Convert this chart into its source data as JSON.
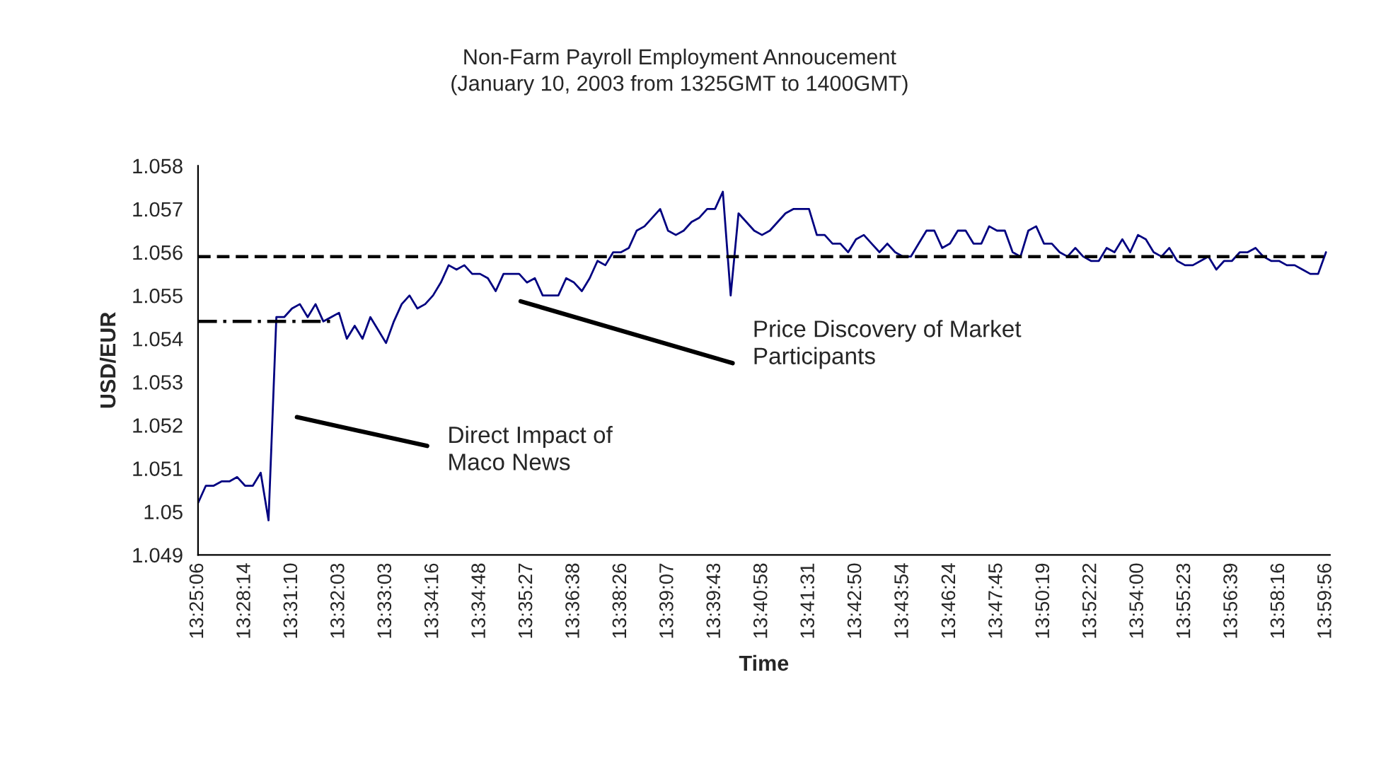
{
  "chart_data": {
    "type": "line",
    "title": "Non-Farm Payroll Employment Annoucement\n(January 10, 2003 from 1325GMT to 1400GMT)",
    "xlabel": "Time",
    "ylabel": "USD/EUR",
    "categories": [
      "13:25:06",
      null,
      null,
      null,
      null,
      null,
      "13:28:14",
      null,
      null,
      null,
      null,
      null,
      "13:31:10",
      null,
      null,
      null,
      null,
      null,
      "13:32:03",
      null,
      null,
      null,
      null,
      null,
      "13:33:03",
      null,
      null,
      null,
      null,
      null,
      "13:34:16",
      null,
      null,
      null,
      null,
      null,
      "13:34:48",
      null,
      null,
      null,
      null,
      null,
      "13:35:27",
      null,
      null,
      null,
      null,
      null,
      "13:36:38",
      null,
      null,
      null,
      null,
      null,
      "13:38:26",
      null,
      null,
      null,
      null,
      null,
      "13:39:07",
      null,
      null,
      null,
      null,
      null,
      "13:39:43",
      null,
      null,
      null,
      null,
      null,
      "13:40:58",
      null,
      null,
      null,
      null,
      null,
      "13:41:31",
      null,
      null,
      null,
      null,
      null,
      "13:42:50",
      null,
      null,
      null,
      null,
      null,
      "13:43:54",
      null,
      null,
      null,
      null,
      null,
      "13:46:24",
      null,
      null,
      null,
      null,
      null,
      "13:47:45",
      null,
      null,
      null,
      null,
      null,
      "13:50:19",
      null,
      null,
      null,
      null,
      null,
      "13:52:22",
      null,
      null,
      null,
      null,
      null,
      "13:54:00",
      null,
      null,
      null,
      null,
      null,
      "13:55:23",
      null,
      null,
      null,
      null,
      null,
      "13:56:39",
      null,
      null,
      null,
      null,
      null,
      "13:58:16",
      null,
      null,
      null,
      null,
      null,
      "13:59:56"
    ],
    "series": [
      {
        "color": "#000080",
        "line_style": "solid",
        "values": [
          1.0502,
          1.0506,
          1.0506,
          1.0507,
          1.0507,
          1.0508,
          1.0506,
          1.0506,
          1.0509,
          1.0498,
          1.0545,
          1.0545,
          1.0547,
          1.0548,
          1.0545,
          1.0548,
          1.0544,
          1.0545,
          1.0546,
          1.054,
          1.0543,
          1.054,
          1.0545,
          1.0542,
          1.0539,
          1.0544,
          1.0548,
          1.055,
          1.0547,
          1.0548,
          1.055,
          1.0553,
          1.0557,
          1.0556,
          1.0557,
          1.0555,
          1.0555,
          1.0554,
          1.0551,
          1.0555,
          1.0555,
          1.0555,
          1.0553,
          1.0554,
          1.055,
          1.055,
          1.055,
          1.0554,
          1.0553,
          1.0551,
          1.0554,
          1.0558,
          1.0557,
          1.056,
          1.056,
          1.0561,
          1.0565,
          1.0566,
          1.0568,
          1.057,
          1.0565,
          1.0564,
          1.0565,
          1.0567,
          1.0568,
          1.057,
          1.057,
          1.0574,
          1.055,
          1.0569,
          1.0567,
          1.0565,
          1.0564,
          1.0565,
          1.0567,
          1.0569,
          1.057,
          1.057,
          1.057,
          1.0564,
          1.0564,
          1.0562,
          1.0562,
          1.056,
          1.0563,
          1.0564,
          1.0562,
          1.056,
          1.0562,
          1.056,
          1.0559,
          1.0559,
          1.0562,
          1.0565,
          1.0565,
          1.0561,
          1.0562,
          1.0565,
          1.0565,
          1.0562,
          1.0562,
          1.0566,
          1.0565,
          1.0565,
          1.056,
          1.0559,
          1.0565,
          1.0566,
          1.0562,
          1.0562,
          1.056,
          1.0559,
          1.0561,
          1.0559,
          1.0558,
          1.0558,
          1.0561,
          1.056,
          1.0563,
          1.056,
          1.0564,
          1.0563,
          1.056,
          1.0559,
          1.0561,
          1.0558,
          1.0557,
          1.0557,
          1.0558,
          1.0559,
          1.0556,
          1.0558,
          1.0558,
          1.056,
          1.056,
          1.0561,
          1.0559,
          1.0558,
          1.0558,
          1.0557,
          1.0557,
          1.0556,
          1.0555,
          1.0555,
          1.056
        ]
      },
      {
        "color": "#000000",
        "line_style": "dashdot",
        "values": [
          1.0544,
          1.0544,
          1.0544,
          1.0544,
          1.0544,
          1.0544,
          1.0544,
          1.0544,
          1.0544,
          1.0544,
          1.0544,
          1.0544,
          1.0544,
          1.0544,
          1.0544,
          1.0544,
          1.0544,
          1.0544,
          null,
          null,
          null,
          null,
          null,
          null,
          null,
          null,
          null,
          null,
          null,
          null,
          null,
          null,
          null,
          null,
          null,
          null,
          null,
          null,
          null,
          null,
          null,
          null,
          null,
          null,
          null,
          null,
          null,
          null,
          null,
          null,
          null,
          null,
          null,
          null,
          null,
          null,
          null,
          null,
          null,
          null,
          null,
          null,
          null,
          null,
          null,
          null,
          null,
          null,
          null,
          null,
          null,
          null,
          null,
          null,
          null,
          null,
          null,
          null,
          null,
          null,
          null,
          null,
          null,
          null,
          null,
          null,
          null,
          null,
          null,
          null,
          null,
          null,
          null,
          null,
          null,
          null,
          null,
          null,
          null,
          null,
          null,
          null,
          null,
          null,
          null,
          null,
          null,
          null,
          null,
          null,
          null,
          null,
          null,
          null,
          null,
          null,
          null,
          null,
          null,
          null,
          null,
          null,
          null,
          null,
          null,
          null,
          null,
          null,
          null,
          null,
          null,
          null,
          null,
          null,
          null,
          null,
          null,
          null,
          null,
          null,
          null,
          null,
          null,
          null,
          null
        ]
      }
    ],
    "ref_lines": [
      {
        "axis": "y",
        "value": 1.0559,
        "color": "#000000",
        "line_style": "dashed"
      }
    ],
    "annotations": [
      "Direct Impact of\nMaco News",
      "Price Discovery of Market\nParticipants"
    ],
    "ylim": [
      1.049,
      1.058
    ],
    "yticks": [
      1.049,
      1.05,
      1.051,
      1.052,
      1.053,
      1.054,
      1.055,
      1.056,
      1.057,
      1.058
    ],
    "grid": false,
    "legend": false
  }
}
